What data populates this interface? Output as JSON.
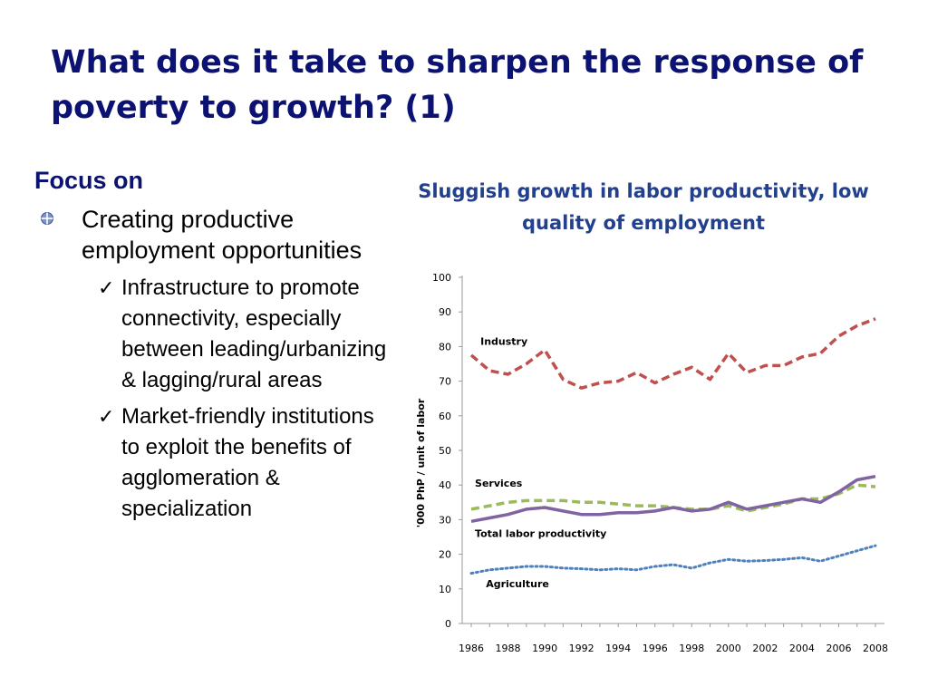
{
  "slide": {
    "title": "What does it take to sharpen the response of poverty to growth? (1)",
    "focus": "Focus on",
    "bullet": "Creating productive employment opportunities",
    "subs": [
      "Infrastructure to promote connectivity, especially between leading/urbanizing & lagging/rural areas",
      "Market-friendly institutions to exploit the benefits of agglomeration & specialization"
    ],
    "check_glyph": "✓"
  },
  "chart_data": {
    "type": "line",
    "title": "Sluggish growth in labor productivity, low quality of employment",
    "ylabel": "'000 PhP / unit of labor",
    "xlabel": "",
    "ylim": [
      0,
      100
    ],
    "yticks": [
      0,
      10,
      20,
      30,
      40,
      50,
      60,
      70,
      80,
      90,
      100
    ],
    "x": [
      1986,
      1987,
      1988,
      1989,
      1990,
      1991,
      1992,
      1993,
      1994,
      1995,
      1996,
      1997,
      1998,
      1999,
      2000,
      2001,
      2002,
      2003,
      2004,
      2005,
      2006,
      2007,
      2008
    ],
    "xtick_labels": [
      "1986",
      "1988",
      "1990",
      "1992",
      "1994",
      "1996",
      "1998",
      "2000",
      "2002",
      "2004",
      "2006",
      "2008"
    ],
    "grid": false,
    "series": [
      {
        "name": "Industry",
        "color": "#c0504d",
        "style": "dashed",
        "values": [
          77.5,
          73,
          72,
          75,
          79,
          70.5,
          68,
          69.5,
          70,
          72.5,
          69.5,
          72,
          74,
          70.5,
          78,
          72.5,
          74.5,
          74.5,
          77,
          78,
          83,
          86,
          88
        ]
      },
      {
        "name": "Services",
        "color": "#9bbb59",
        "style": "dashed",
        "values": [
          33,
          34,
          35,
          35.5,
          35.5,
          35.5,
          35,
          35,
          34.5,
          34,
          34,
          33.5,
          33,
          33,
          34,
          32.5,
          33.5,
          34.5,
          36,
          36,
          37.5,
          40,
          39.5
        ]
      },
      {
        "name": "Total labor productivity",
        "color": "#8064a2",
        "style": "solid",
        "values": [
          29.5,
          30.5,
          31.5,
          33,
          33.5,
          32.5,
          31.5,
          31.5,
          32,
          32,
          32.5,
          33.5,
          32.5,
          33,
          35,
          33,
          34,
          35,
          36,
          35,
          38,
          41.5,
          42.5
        ]
      },
      {
        "name": "Agriculture",
        "color": "#4f81bd",
        "style": "dotted",
        "values": [
          14.5,
          15.5,
          16,
          16.5,
          16.5,
          16,
          15.8,
          15.5,
          15.8,
          15.5,
          16.5,
          17,
          16,
          17.5,
          18.5,
          18,
          18.2,
          18.5,
          19,
          18,
          19.5,
          21,
          22.5
        ]
      }
    ]
  }
}
